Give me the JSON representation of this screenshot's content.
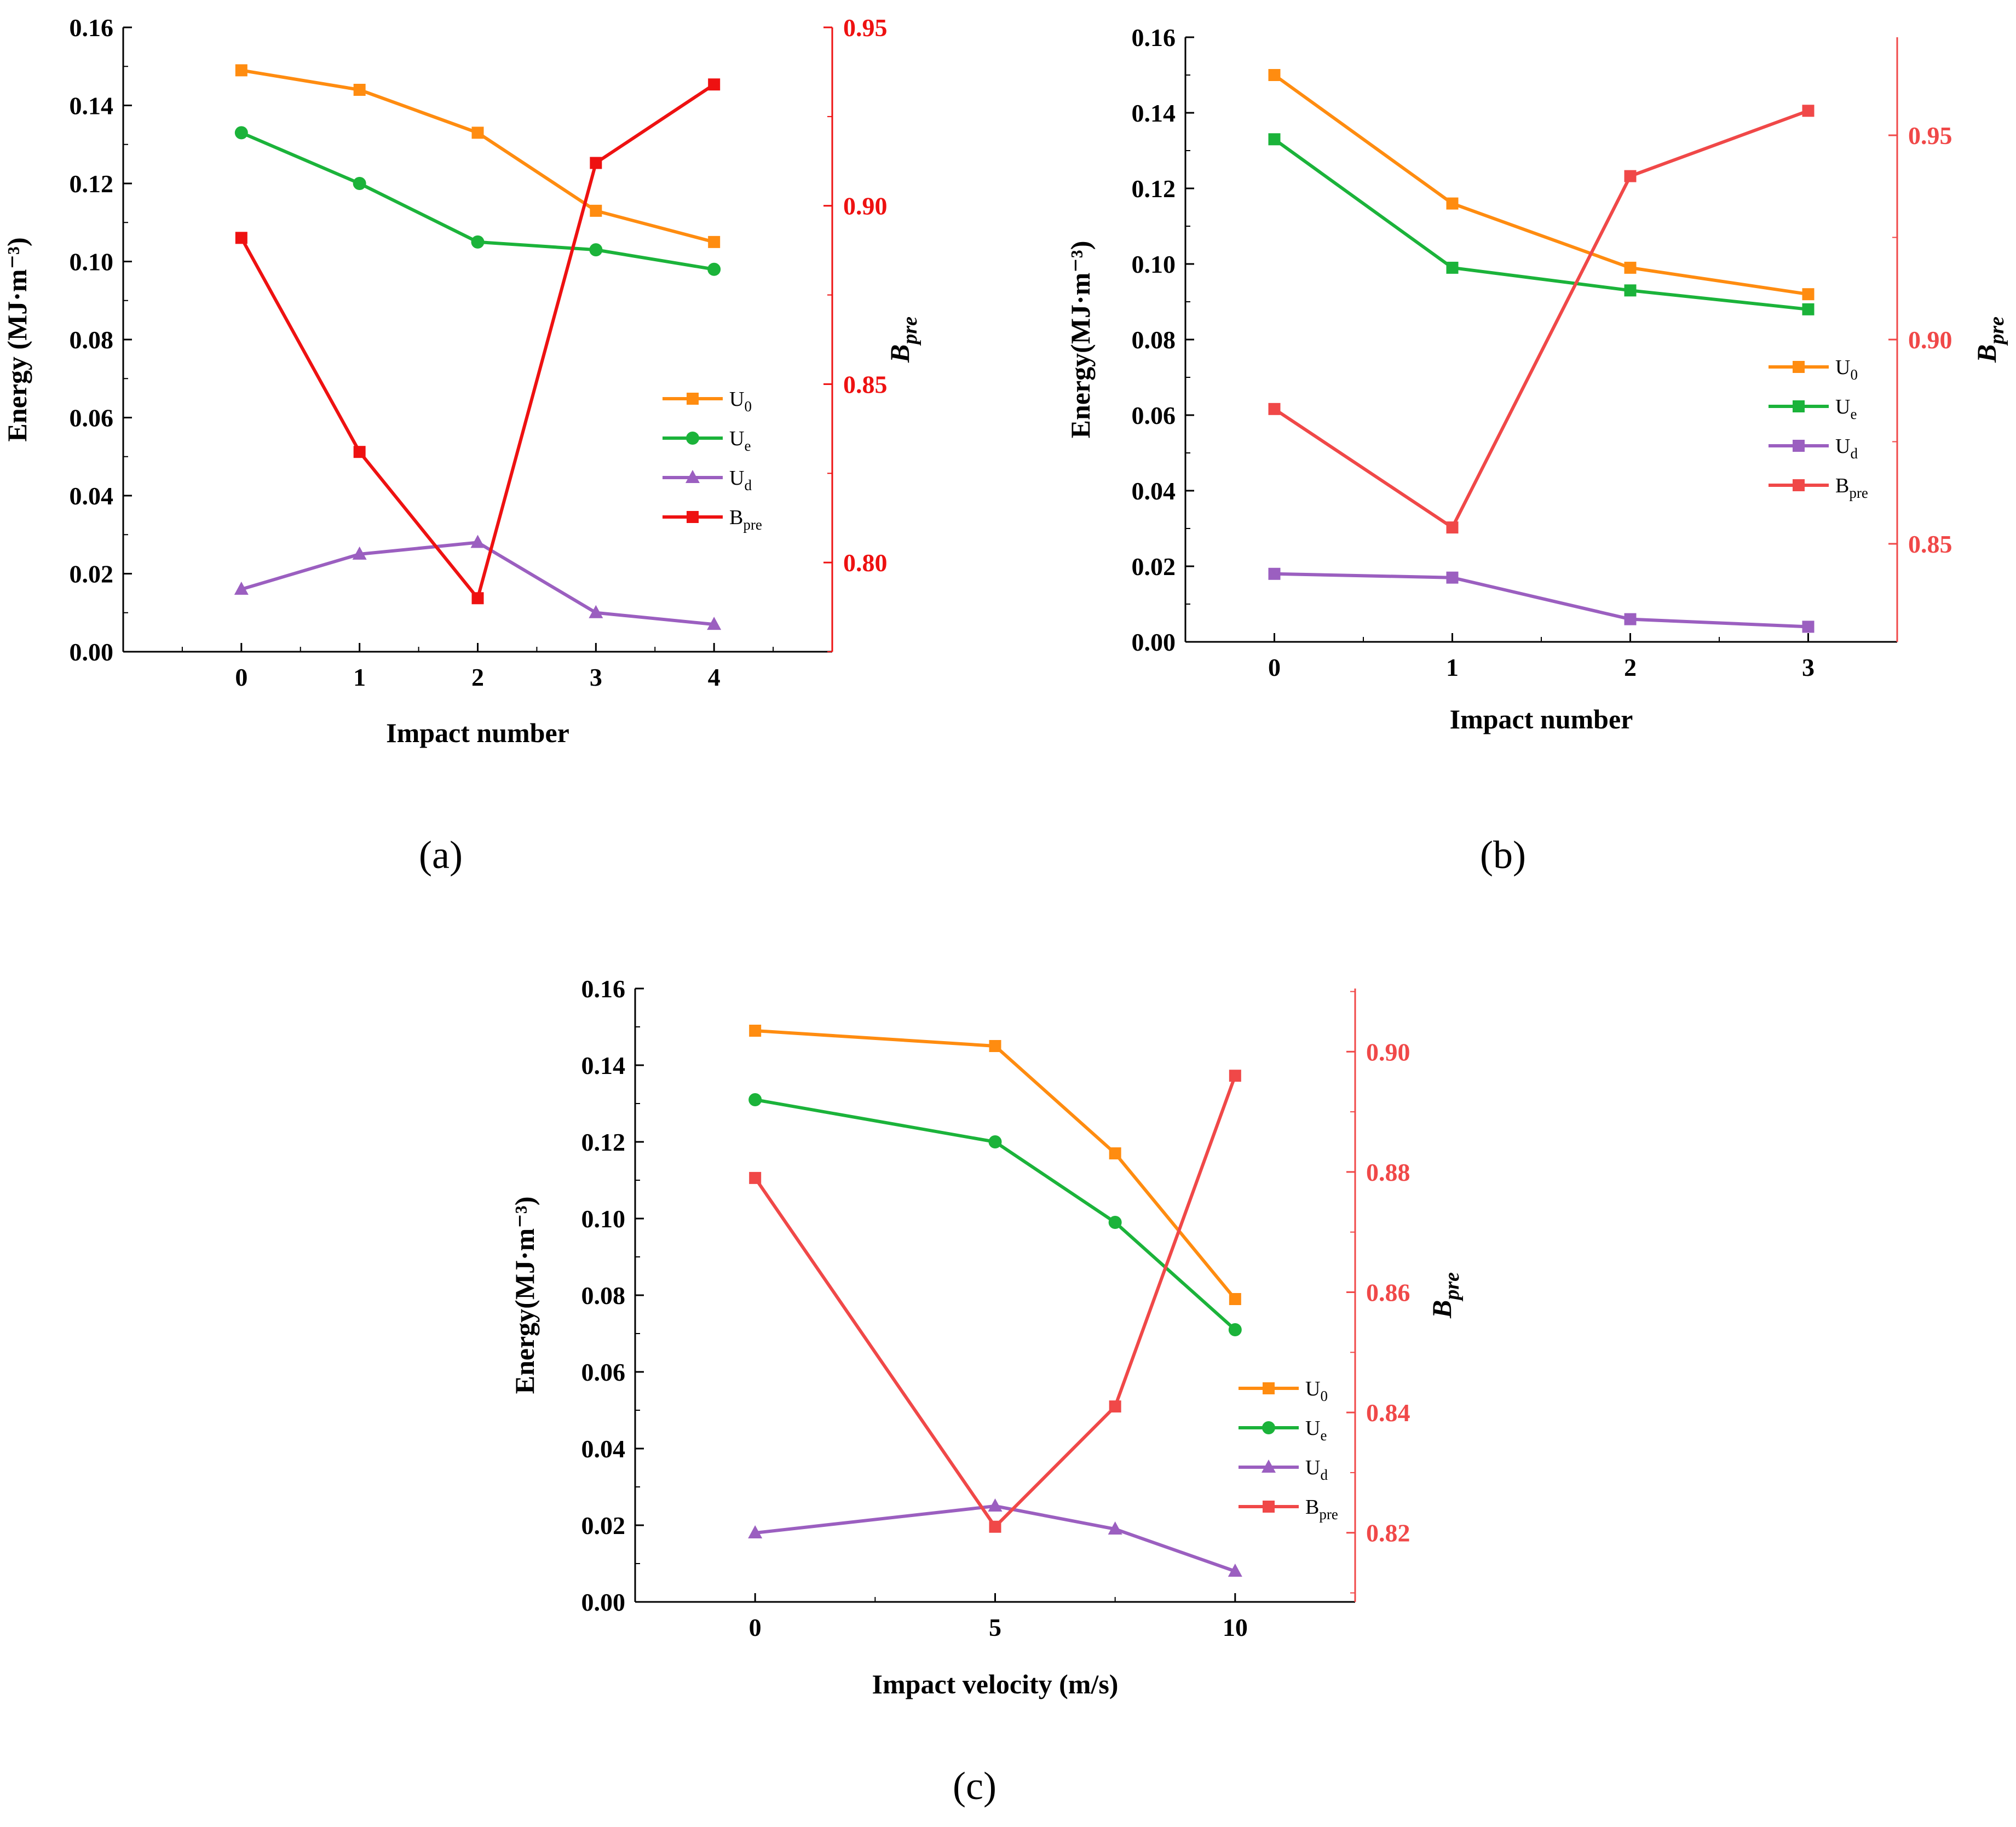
{
  "colors": {
    "U0": "#FF8C10",
    "Ue": "#1BB33A",
    "Ud": "#9B5FC0",
    "Bpre_a": "#EE1111",
    "Bpre_bc": "#F04848",
    "axis": "#000000",
    "right_axis": "#FF2020"
  },
  "chart_data": [
    {
      "type": "line",
      "panel_label": "(a)",
      "xlabel": "Impact number",
      "ylabel_left": "Energy (MJ·m⁻³)",
      "ylabel_right": "B_pre",
      "x": [
        0,
        1,
        2,
        3,
        4
      ],
      "xlim": [
        -1,
        5
      ],
      "xticks": [
        0,
        1,
        2,
        3,
        4
      ],
      "xtick_labels": [
        "0",
        "1",
        "2",
        "3",
        "4"
      ],
      "ylim": [
        0,
        0.16
      ],
      "yticks": [
        0.0,
        0.02,
        0.04,
        0.06,
        0.08,
        0.1,
        0.12,
        0.14,
        0.16
      ],
      "ytick_labels": [
        "0.00",
        "0.02",
        "0.04",
        "0.06",
        "0.08",
        "0.10",
        "0.12",
        "0.14",
        "0.16"
      ],
      "y2lim": [
        0.775,
        0.95
      ],
      "y2ticks": [
        0.8,
        0.85,
        0.9,
        0.95
      ],
      "y2tick_labels": [
        "0.80",
        "0.85",
        "0.90",
        "0.95"
      ],
      "legend_position": "right-middle",
      "series": [
        {
          "name": "U0",
          "label": "U",
          "sub": "0",
          "axis": "left",
          "marker": "square",
          "values": [
            0.149,
            0.144,
            0.133,
            0.113,
            0.105
          ]
        },
        {
          "name": "Ue",
          "label": "U",
          "sub": "e",
          "axis": "left",
          "marker": "circle",
          "values": [
            0.133,
            0.12,
            0.105,
            0.103,
            0.098
          ]
        },
        {
          "name": "Ud",
          "label": "U",
          "sub": "d",
          "axis": "left",
          "marker": "triangle",
          "values": [
            0.016,
            0.025,
            0.028,
            0.01,
            0.007
          ]
        },
        {
          "name": "Bpre",
          "label": "B",
          "sub": "pre",
          "axis": "right",
          "marker": "square",
          "values": [
            0.891,
            0.831,
            0.79,
            0.912,
            0.934
          ]
        }
      ]
    },
    {
      "type": "line",
      "panel_label": "(b)",
      "xlabel": "Impact number",
      "ylabel_left": "Energy(MJ·m⁻³)",
      "ylabel_right": "B_pre",
      "x": [
        0,
        1,
        2,
        3
      ],
      "xlim": [
        -0.5,
        3.5
      ],
      "xticks": [
        0,
        1,
        2,
        3
      ],
      "xtick_labels": [
        "0",
        "1",
        "2",
        "3"
      ],
      "ylim": [
        0,
        0.16
      ],
      "yticks": [
        0.0,
        0.02,
        0.04,
        0.06,
        0.08,
        0.1,
        0.12,
        0.14,
        0.16
      ],
      "ytick_labels": [
        "0.00",
        "0.02",
        "0.04",
        "0.06",
        "0.08",
        "0.10",
        "0.12",
        "0.14",
        "0.16"
      ],
      "y2lim": [
        0.826,
        0.974
      ],
      "y2ticks": [
        0.85,
        0.9,
        0.95
      ],
      "y2tick_labels": [
        "0.85",
        "0.90",
        "0.95"
      ],
      "legend_position": "right-middle",
      "series": [
        {
          "name": "U0",
          "label": "U",
          "sub": "0",
          "axis": "left",
          "marker": "square",
          "values": [
            0.15,
            0.116,
            0.099,
            0.092
          ]
        },
        {
          "name": "Ue",
          "label": "U",
          "sub": "e",
          "axis": "left",
          "marker": "square",
          "values": [
            0.133,
            0.099,
            0.093,
            0.088
          ]
        },
        {
          "name": "Ud",
          "label": "U",
          "sub": "d",
          "axis": "left",
          "marker": "square",
          "values": [
            0.018,
            0.017,
            0.006,
            0.004
          ]
        },
        {
          "name": "Bpre",
          "label": "B",
          "sub": "pre",
          "axis": "right",
          "marker": "square",
          "values": [
            0.883,
            0.854,
            0.94,
            0.956
          ]
        }
      ]
    },
    {
      "type": "line",
      "panel_label": "(c)",
      "xlabel": "Impact velocity (m/s)",
      "ylabel_left": "Energy(MJ·m⁻³)",
      "ylabel_right": "B_pre",
      "x": [
        0,
        5,
        7.5,
        10
      ],
      "xlim": [
        -2.5,
        12.5
      ],
      "xticks": [
        0,
        5,
        10
      ],
      "xtick_labels": [
        "0",
        "5",
        "10"
      ],
      "ylim": [
        0,
        0.16
      ],
      "yticks": [
        0.0,
        0.02,
        0.04,
        0.06,
        0.08,
        0.1,
        0.12,
        0.14,
        0.16
      ],
      "ytick_labels": [
        "0.00",
        "0.02",
        "0.04",
        "0.06",
        "0.08",
        "0.10",
        "0.12",
        "0.14",
        "0.16"
      ],
      "y2lim": [
        0.8085,
        0.9105
      ],
      "y2ticks": [
        0.82,
        0.84,
        0.86,
        0.88,
        0.9
      ],
      "y2tick_labels": [
        "0.82",
        "0.84",
        "0.86",
        "0.88",
        "0.90"
      ],
      "legend_position": "right-bottom",
      "series": [
        {
          "name": "U0",
          "label": "U",
          "sub": "0",
          "axis": "left",
          "marker": "square",
          "values": [
            0.149,
            0.145,
            0.117,
            0.079
          ]
        },
        {
          "name": "Ue",
          "label": "U",
          "sub": "e",
          "axis": "left",
          "marker": "circle",
          "values": [
            0.131,
            0.12,
            0.099,
            0.071
          ]
        },
        {
          "name": "Ud",
          "label": "U",
          "sub": "d",
          "axis": "left",
          "marker": "triangle",
          "values": [
            0.018,
            0.025,
            0.019,
            0.008
          ]
        },
        {
          "name": "Bpre",
          "label": "B",
          "sub": "pre",
          "axis": "right",
          "marker": "square",
          "values": [
            0.879,
            0.821,
            0.841,
            0.896
          ]
        }
      ]
    }
  ]
}
